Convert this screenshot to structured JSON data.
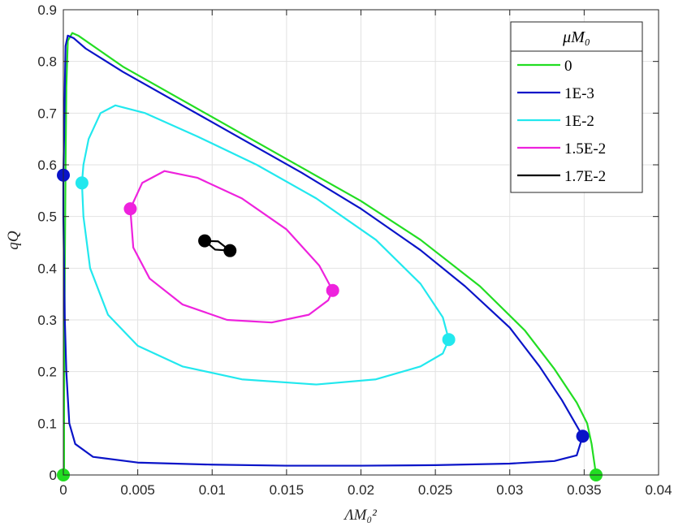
{
  "chart_data": {
    "type": "line",
    "xlabel": "ΛM₀²",
    "ylabel": "qQ",
    "xlim": [
      0,
      0.04
    ],
    "ylim": [
      0,
      0.9
    ],
    "xticks": [
      "0",
      "0.005",
      "0.01",
      "0.015",
      "0.02",
      "0.025",
      "0.03",
      "0.035",
      "0.04"
    ],
    "yticks": [
      "0",
      "0.1",
      "0.2",
      "0.3",
      "0.4",
      "0.5",
      "0.6",
      "0.7",
      "0.8",
      "0.9"
    ],
    "grid": true,
    "legend": {
      "title": "μM₀",
      "placement": "top-right"
    },
    "series": [
      {
        "name": "0",
        "color": "#22dd22",
        "points": [
          [
            5e-05,
            0.0
          ],
          [
            5e-05,
            0.15
          ],
          [
            0.0001,
            0.4
          ],
          [
            0.00015,
            0.6
          ],
          [
            0.0002,
            0.75
          ],
          [
            0.0003,
            0.84
          ],
          [
            0.0006,
            0.855
          ],
          [
            0.001,
            0.85
          ],
          [
            0.004,
            0.79
          ],
          [
            0.008,
            0.725
          ],
          [
            0.012,
            0.66
          ],
          [
            0.016,
            0.595
          ],
          [
            0.02,
            0.53
          ],
          [
            0.024,
            0.455
          ],
          [
            0.028,
            0.365
          ],
          [
            0.031,
            0.28
          ],
          [
            0.033,
            0.205
          ],
          [
            0.0345,
            0.14
          ],
          [
            0.0352,
            0.1
          ],
          [
            0.0355,
            0.06
          ],
          [
            0.0357,
            0.02
          ],
          [
            0.0358,
            0.0
          ]
        ],
        "markers": [
          [
            0.0,
            0.0
          ],
          [
            0.0358,
            0.0
          ]
        ]
      },
      {
        "name": "1E-3",
        "color": "#0a14c8",
        "points": [
          [
            0.0349,
            0.075
          ],
          [
            0.0344,
            0.1
          ],
          [
            0.0335,
            0.145
          ],
          [
            0.032,
            0.21
          ],
          [
            0.03,
            0.285
          ],
          [
            0.027,
            0.365
          ],
          [
            0.024,
            0.435
          ],
          [
            0.02,
            0.515
          ],
          [
            0.016,
            0.585
          ],
          [
            0.012,
            0.65
          ],
          [
            0.008,
            0.715
          ],
          [
            0.004,
            0.78
          ],
          [
            0.0015,
            0.825
          ],
          [
            0.0007,
            0.845
          ],
          [
            0.0003,
            0.85
          ],
          [
            0.00015,
            0.83
          ],
          [
            0.0001,
            0.75
          ],
          [
            5e-05,
            0.65
          ],
          [
            0.0,
            0.58
          ],
          [
            0.0,
            0.5
          ],
          [
            5e-05,
            0.4
          ],
          [
            0.0001,
            0.3
          ],
          [
            0.0002,
            0.2
          ],
          [
            0.0004,
            0.1
          ],
          [
            0.0008,
            0.06
          ],
          [
            0.002,
            0.035
          ],
          [
            0.005,
            0.024
          ],
          [
            0.01,
            0.02
          ],
          [
            0.015,
            0.018
          ],
          [
            0.02,
            0.018
          ],
          [
            0.025,
            0.019
          ],
          [
            0.03,
            0.022
          ],
          [
            0.033,
            0.027
          ],
          [
            0.0345,
            0.038
          ],
          [
            0.0349,
            0.075
          ]
        ],
        "markers": [
          [
            0.0,
            0.58
          ],
          [
            0.0349,
            0.075
          ]
        ]
      },
      {
        "name": "1E-2",
        "color": "#22e8ee",
        "points": [
          [
            0.00125,
            0.565
          ],
          [
            0.00135,
            0.6
          ],
          [
            0.0017,
            0.65
          ],
          [
            0.0025,
            0.7
          ],
          [
            0.0035,
            0.715
          ],
          [
            0.0055,
            0.7
          ],
          [
            0.009,
            0.655
          ],
          [
            0.013,
            0.6
          ],
          [
            0.017,
            0.535
          ],
          [
            0.021,
            0.455
          ],
          [
            0.024,
            0.37
          ],
          [
            0.0255,
            0.305
          ],
          [
            0.0259,
            0.262
          ],
          [
            0.0255,
            0.235
          ],
          [
            0.024,
            0.21
          ],
          [
            0.021,
            0.185
          ],
          [
            0.017,
            0.175
          ],
          [
            0.012,
            0.185
          ],
          [
            0.008,
            0.21
          ],
          [
            0.005,
            0.25
          ],
          [
            0.003,
            0.31
          ],
          [
            0.0018,
            0.4
          ],
          [
            0.00135,
            0.5
          ],
          [
            0.00125,
            0.565
          ]
        ],
        "markers": [
          [
            0.00125,
            0.565
          ],
          [
            0.0259,
            0.262
          ]
        ]
      },
      {
        "name": "1.5E-2",
        "color": "#ee22dd",
        "points": [
          [
            0.0045,
            0.515
          ],
          [
            0.0053,
            0.565
          ],
          [
            0.0068,
            0.588
          ],
          [
            0.009,
            0.575
          ],
          [
            0.012,
            0.535
          ],
          [
            0.015,
            0.475
          ],
          [
            0.0172,
            0.405
          ],
          [
            0.0181,
            0.357
          ],
          [
            0.0178,
            0.338
          ],
          [
            0.0165,
            0.31
          ],
          [
            0.014,
            0.295
          ],
          [
            0.011,
            0.3
          ],
          [
            0.008,
            0.33
          ],
          [
            0.0058,
            0.38
          ],
          [
            0.0047,
            0.44
          ],
          [
            0.0045,
            0.515
          ]
        ],
        "markers": [
          [
            0.0045,
            0.515
          ],
          [
            0.0181,
            0.357
          ]
        ]
      },
      {
        "name": "1.7E-2",
        "color": "#000000",
        "points": [
          [
            0.0095,
            0.453
          ],
          [
            0.0104,
            0.452
          ],
          [
            0.0112,
            0.434
          ],
          [
            0.0102,
            0.436
          ],
          [
            0.0095,
            0.453
          ]
        ],
        "markers": [
          [
            0.0095,
            0.453
          ],
          [
            0.0112,
            0.434
          ]
        ]
      }
    ]
  }
}
